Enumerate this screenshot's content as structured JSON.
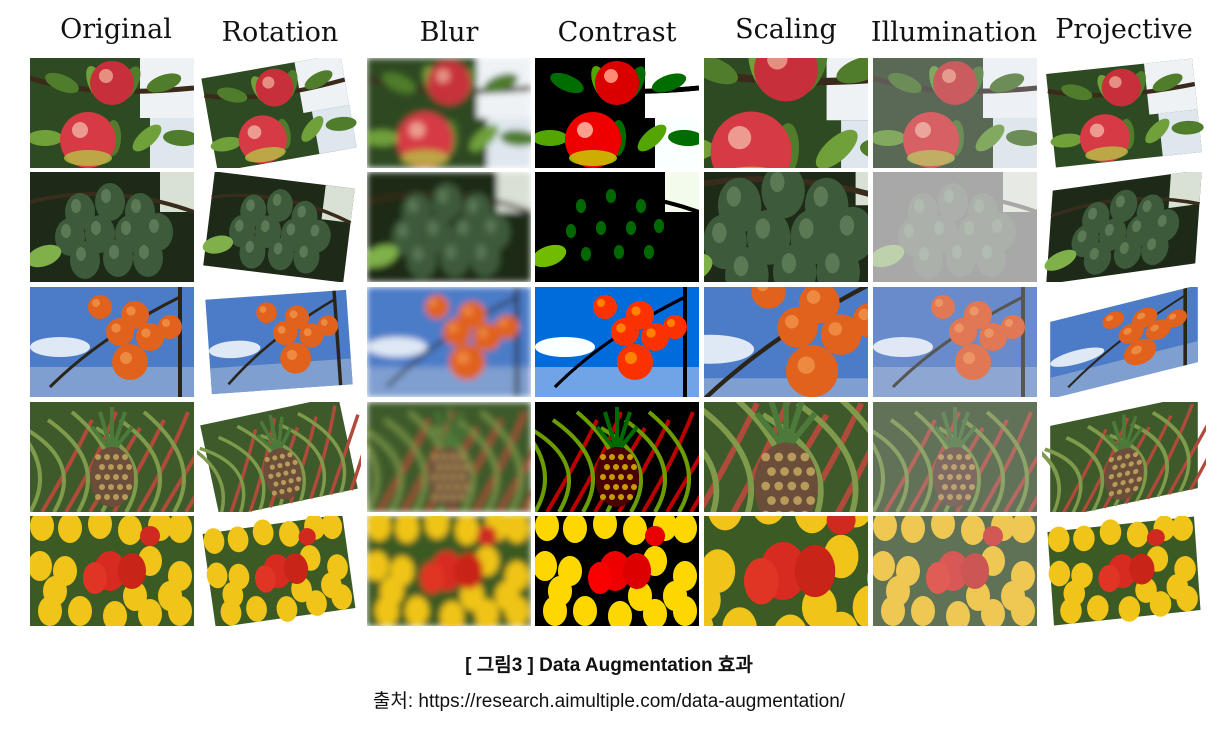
{
  "columns": [
    {
      "label": "Original"
    },
    {
      "label": "Rotation"
    },
    {
      "label": "Blur"
    },
    {
      "label": "Contrast"
    },
    {
      "label": "Scaling"
    },
    {
      "label": "Illumination"
    },
    {
      "label": "Projective"
    }
  ],
  "rows": [
    {
      "subject": "apple"
    },
    {
      "subject": "green-fruit"
    },
    {
      "subject": "persimmon"
    },
    {
      "subject": "pineapple"
    },
    {
      "subject": "tulip"
    }
  ],
  "caption": {
    "title": "[ 그림3 ] Data Augmentation 효과",
    "source": "출처: https://research.aimultiple.com/data-augmentation/"
  }
}
